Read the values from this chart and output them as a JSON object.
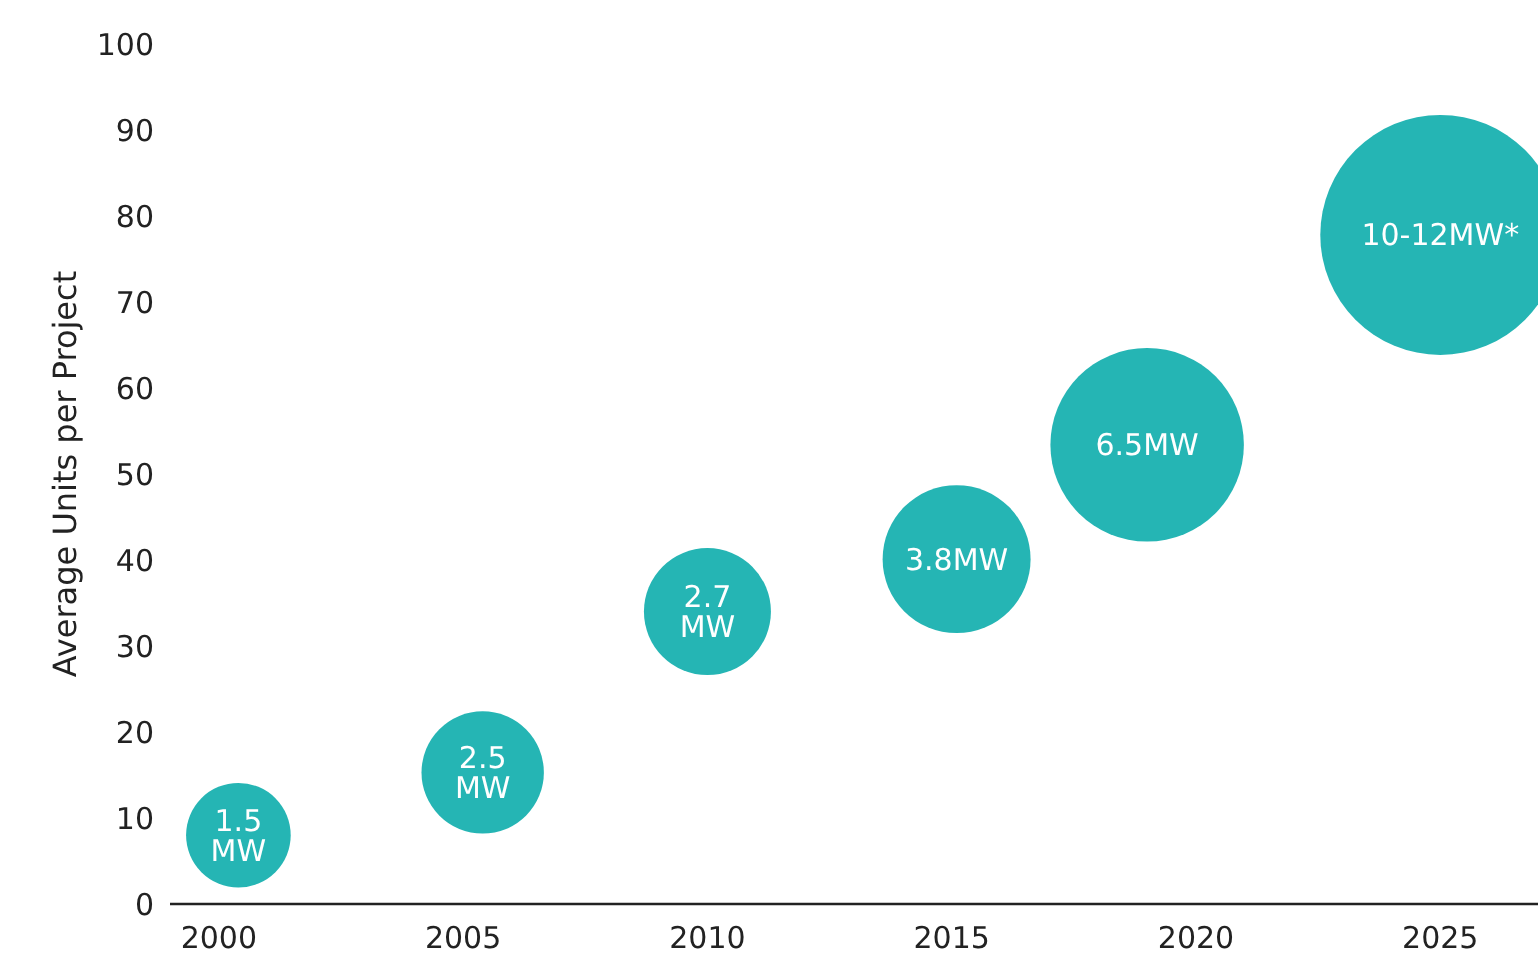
{
  "chart_data": {
    "type": "bubble",
    "ylabel": "Average Units per Project",
    "x": [
      2000.4,
      2005.4,
      2010.0,
      2015.1,
      2019.0,
      2025.0
    ],
    "series": [
      {
        "color": "#25b5b4",
        "values": [
          8.0,
          15.3,
          34.0,
          40.1,
          53.4,
          77.8
        ],
        "sizes": [
          0.19,
          0.26,
          0.28,
          0.38,
          0.65,
          1
        ]
      }
    ],
    "annotations": [
      {
        "text": "1.5 MW",
        "x": 2000.4,
        "y": 8.0
      },
      {
        "text": "2.5 MW",
        "x": 2005.4,
        "y": 15.3
      },
      {
        "text": "2.7 MW",
        "x": 2010.0,
        "y": 34.0
      },
      {
        "text": "3.8MW",
        "x": 2015.1,
        "y": 40.1
      },
      {
        "text": "6.5MW",
        "x": 2019.0,
        "y": 53.4
      },
      {
        "text": "10-12MW*",
        "x": 2025.0,
        "y": 77.8
      }
    ],
    "xlim": [
      1999,
      2027
    ],
    "xticks": [
      2000,
      2005,
      2010,
      2015,
      2020,
      2025
    ],
    "ylim": [
      0,
      100
    ],
    "yticks": [
      0,
      10,
      20,
      30,
      40,
      50,
      60,
      70,
      80,
      90,
      100
    ],
    "grid": false
  }
}
